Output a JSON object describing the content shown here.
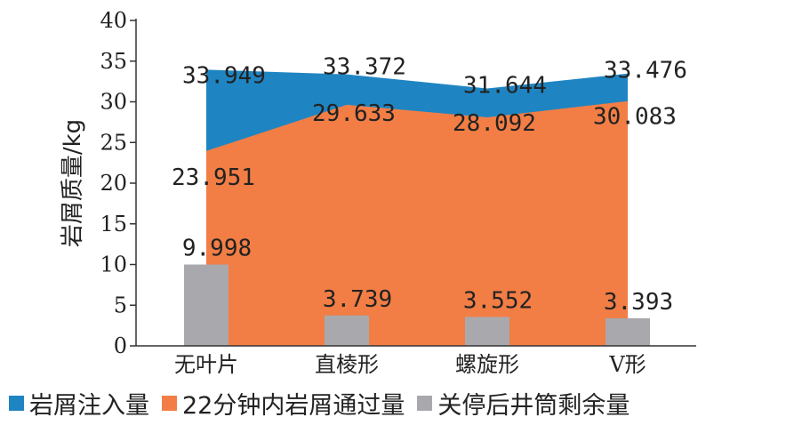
{
  "chart_data": {
    "type": "area",
    "categories": [
      "无叶片",
      "直棱形",
      "螺旋形",
      "V形"
    ],
    "ylabel": "岩屑质量/kg",
    "ylim": [
      0,
      40
    ],
    "yticks": [
      0,
      5,
      10,
      15,
      20,
      25,
      30,
      35,
      40
    ],
    "grid": false,
    "legend_position": "bottom",
    "series": [
      {
        "name": "岩屑注入量",
        "chart": "area",
        "color": "#1f85c2",
        "values": [
          33.949,
          33.372,
          31.644,
          33.476
        ],
        "labels": [
          "33.949",
          "33.372",
          "31.644",
          "33.476"
        ]
      },
      {
        "name": "22分钟内岩屑通过量",
        "chart": "area",
        "color": "#f27e45",
        "values": [
          23.951,
          29.633,
          28.092,
          30.083
        ],
        "labels": [
          "23.951",
          "29.633",
          "28.092",
          "30.083"
        ]
      },
      {
        "name": "关停后井筒剩余量",
        "chart": "bar",
        "color": "#a9a9ad",
        "values": [
          9.998,
          3.739,
          3.552,
          3.393
        ],
        "labels": [
          "9.998",
          "3.739",
          "3.552",
          "3.393"
        ]
      }
    ]
  }
}
